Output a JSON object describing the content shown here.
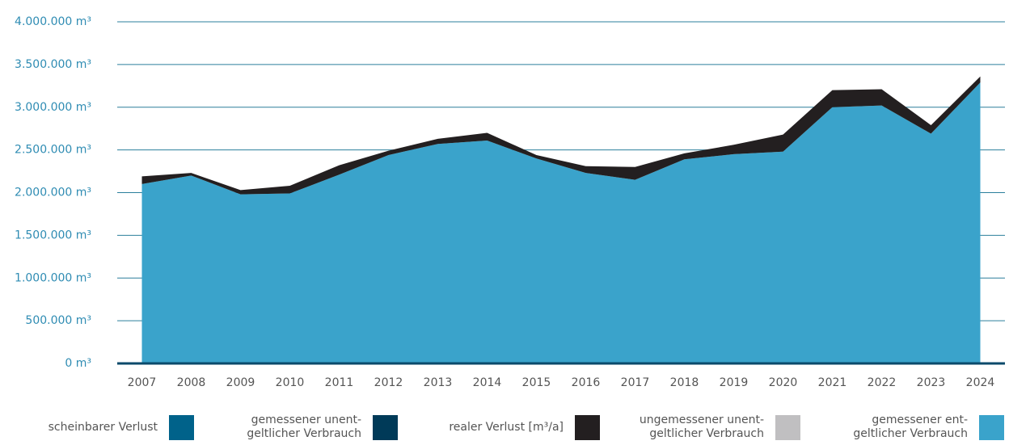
{
  "chart_data": {
    "type": "stacked_area",
    "categories": [
      "2007",
      "2008",
      "2009",
      "2010",
      "2011",
      "2012",
      "2013",
      "2014",
      "2015",
      "2016",
      "2017",
      "2018",
      "2019",
      "2020",
      "2021",
      "2022",
      "2023",
      "2024"
    ],
    "series": [
      {
        "name": "scheinbarer Verlust",
        "color": "#00628a",
        "values": [
          0,
          0,
          0,
          0,
          0,
          0,
          0,
          0,
          0,
          0,
          0,
          0,
          0,
          0,
          0,
          0,
          0,
          0
        ]
      },
      {
        "name": "gemessener unent-\ngeltlicher Verbrauch",
        "color": "#003a58",
        "values": [
          0,
          0,
          0,
          0,
          0,
          0,
          0,
          0,
          0,
          0,
          0,
          0,
          0,
          0,
          0,
          0,
          0,
          0
        ]
      },
      {
        "name": "realer Verlust [m³/a]",
        "color": "#231f20",
        "values": [
          90000,
          30000,
          50000,
          90000,
          110000,
          50000,
          60000,
          90000,
          40000,
          80000,
          150000,
          70000,
          110000,
          200000,
          200000,
          190000,
          100000,
          70000
        ]
      },
      {
        "name": "ungemessener unent-\ngeltlicher Verbrauch",
        "color": "#c0bfc1",
        "values": [
          0,
          0,
          0,
          0,
          0,
          0,
          0,
          0,
          0,
          0,
          0,
          0,
          0,
          0,
          0,
          0,
          0,
          0
        ]
      },
      {
        "name": "gemessener ent-\ngeltlicher Verbrauch",
        "color": "#3aa3cb",
        "values": [
          2100000,
          2200000,
          1980000,
          1990000,
          2210000,
          2440000,
          2570000,
          2610000,
          2400000,
          2230000,
          2150000,
          2390000,
          2450000,
          2480000,
          3000000,
          3020000,
          2690000,
          3290000
        ]
      }
    ],
    "ylim": [
      0,
      4000000
    ],
    "yticks": [
      {
        "value": 0,
        "label": "0 m³"
      },
      {
        "value": 500000,
        "label": "500.000 m³"
      },
      {
        "value": 1000000,
        "label": "1.000.000 m³"
      },
      {
        "value": 1500000,
        "label": "1.500.000 m³"
      },
      {
        "value": 2000000,
        "label": "2.000.000 m³"
      },
      {
        "value": 2500000,
        "label": "2.500.000 m³"
      },
      {
        "value": 3000000,
        "label": "3.000.000 m³"
      },
      {
        "value": 3500000,
        "label": "3.500.000 m³"
      },
      {
        "value": 4000000,
        "label": "4.000.000 m³"
      }
    ],
    "grid": true
  }
}
